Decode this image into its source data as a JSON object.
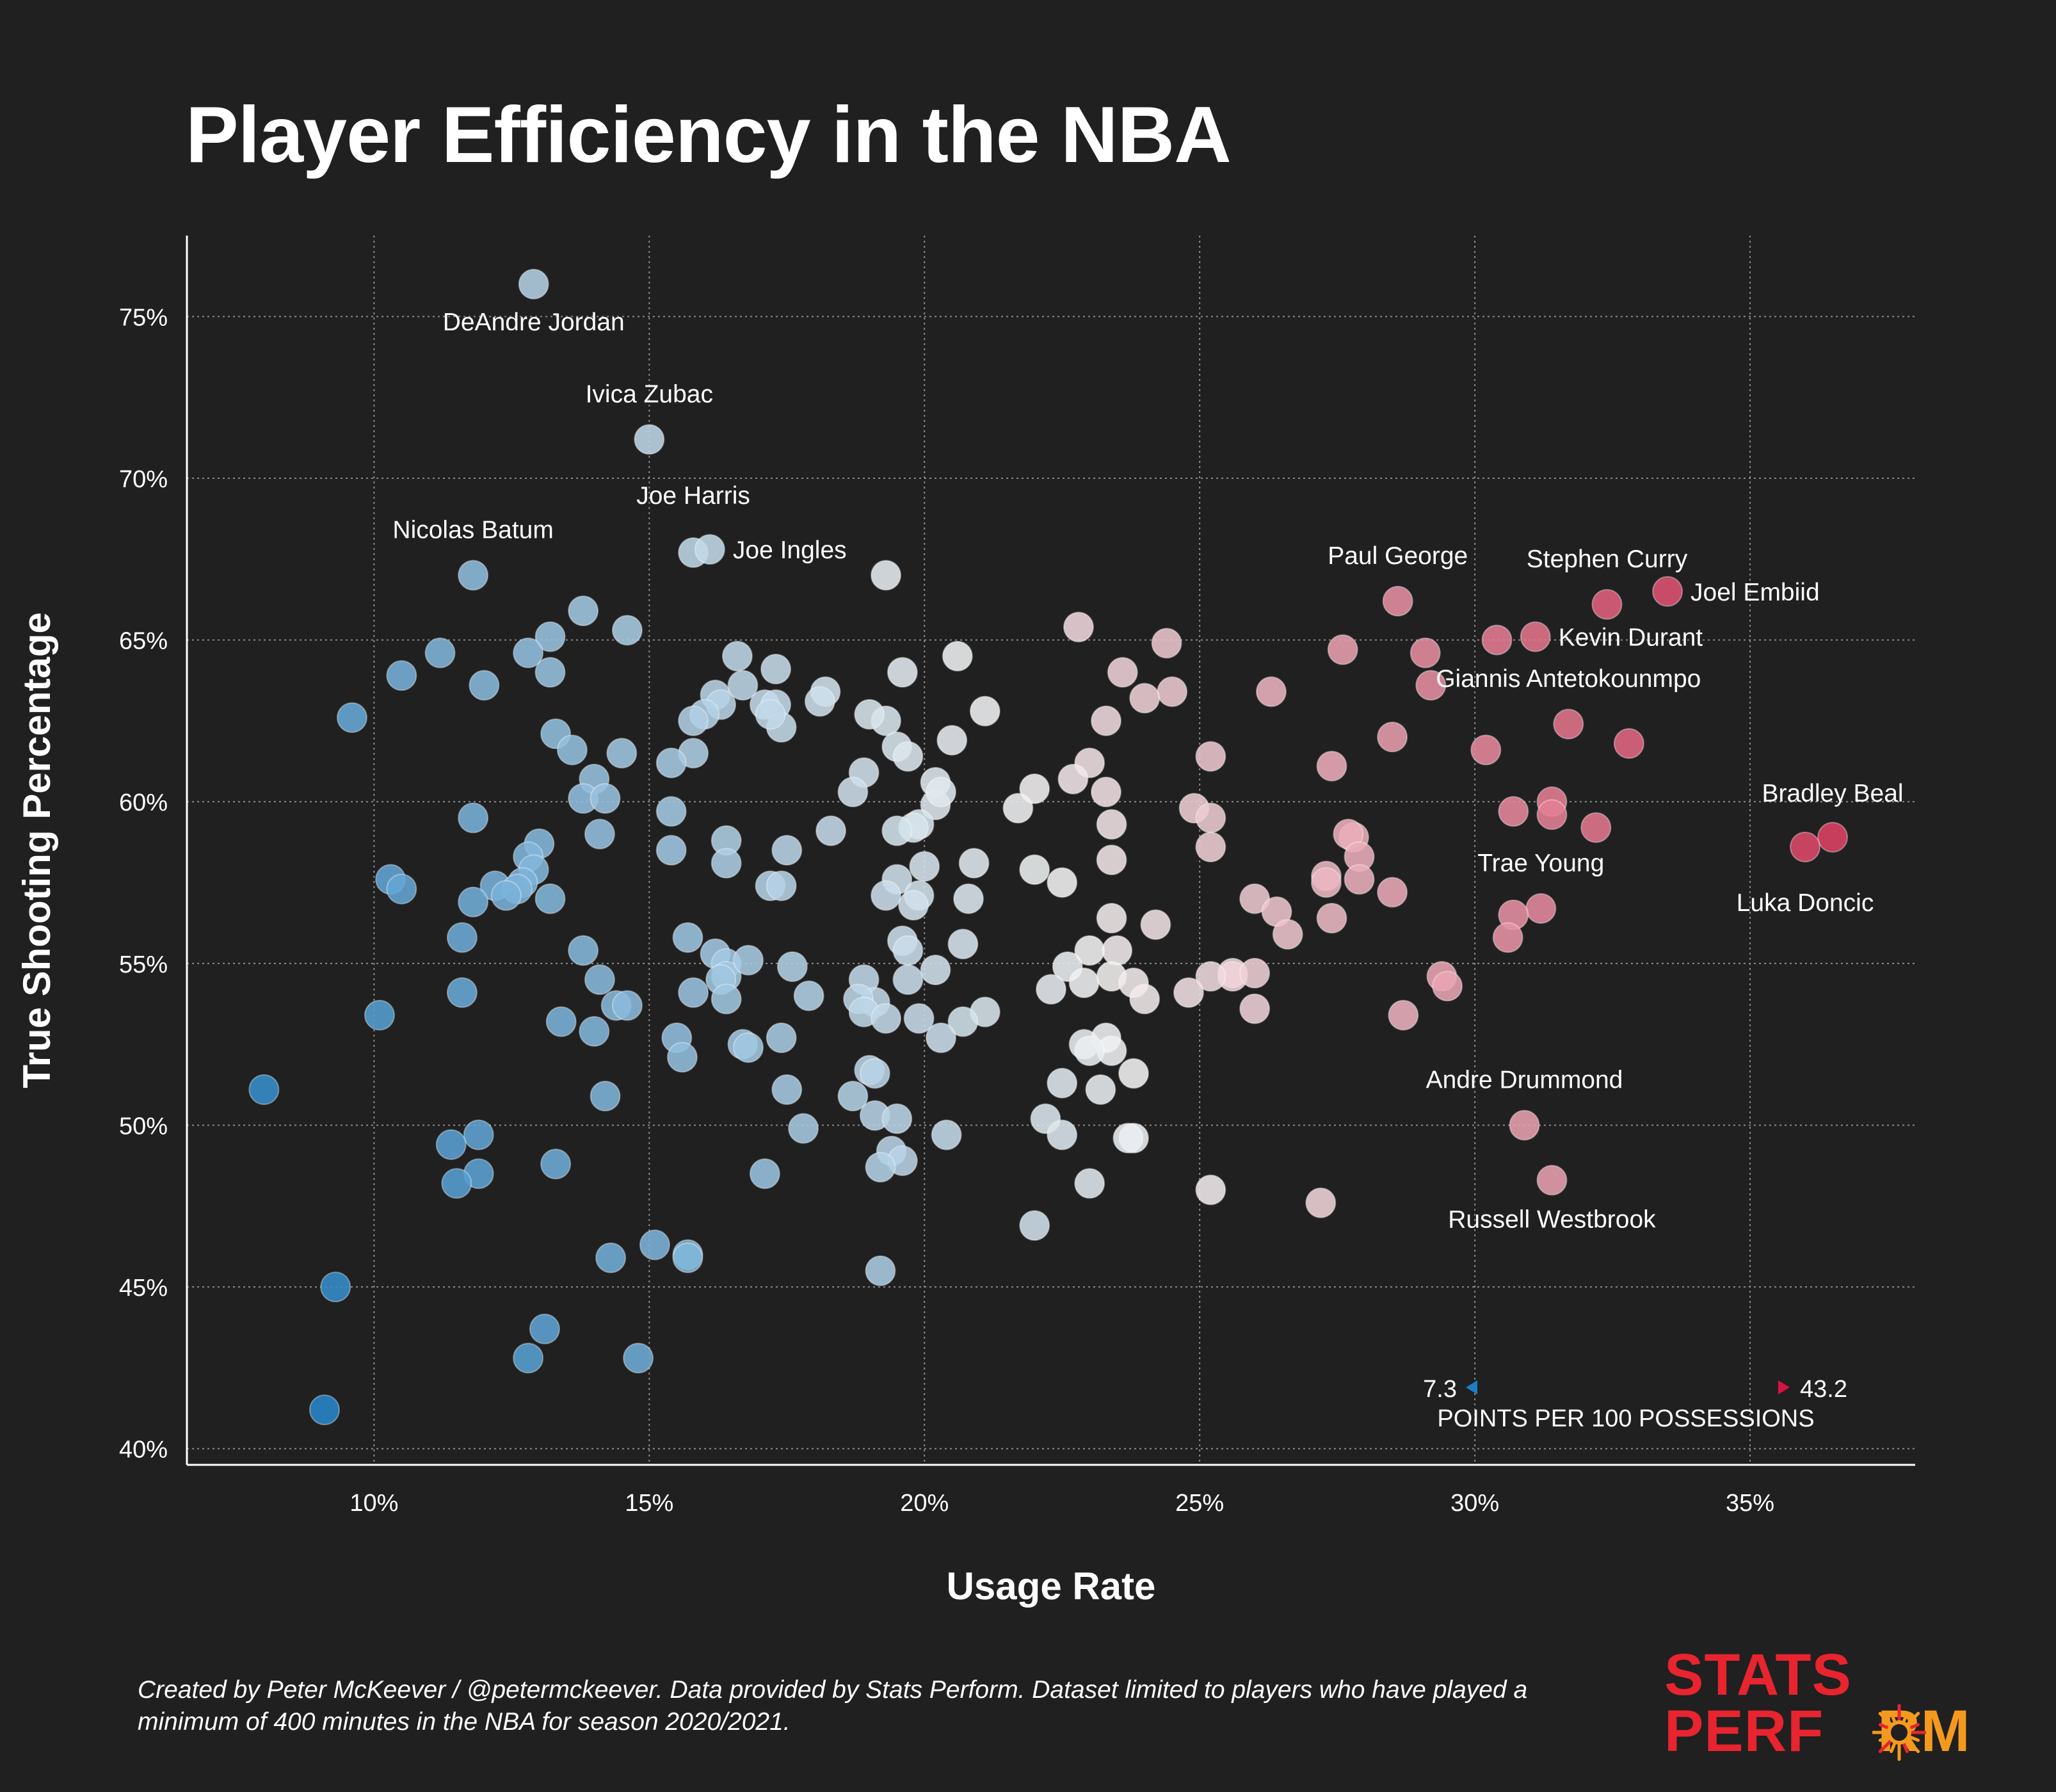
{
  "title": "Player Efficiency in the NBA",
  "caption": "Created by Peter McKeever / @petermckeever. Data provided by Stats Perform. Dataset limited to players who have played a minimum of 400 minutes in the NBA for season 2020/2021.",
  "logo": {
    "line1": "STATS",
    "line2a": "PERF",
    "line2b": "RM",
    "accent_colors": [
      "#e8242f",
      "#f39a1e"
    ]
  },
  "colors": {
    "background": "#202020",
    "low": "#1a7fc6",
    "mid": "#f2f2f2",
    "high": "#d8123e"
  },
  "chart_data": {
    "type": "scatter",
    "title": "Player Efficiency in the NBA",
    "xlabel": "Usage Rate",
    "ylabel": "True Shooting Percentage",
    "xlim": [
      6.6,
      38
    ],
    "ylim": [
      39.5,
      77.5
    ],
    "xticks": [
      10,
      15,
      20,
      25,
      30,
      35
    ],
    "yticks": [
      40,
      45,
      50,
      55,
      60,
      65,
      70,
      75
    ],
    "xtick_labels": [
      "10%",
      "15%",
      "20%",
      "25%",
      "30%",
      "35%"
    ],
    "ytick_labels": [
      "40%",
      "45%",
      "50%",
      "55%",
      "60%",
      "65%",
      "70%",
      "75%"
    ],
    "grid": true,
    "color_scale": {
      "label": "POINTS PER 100 POSSESSIONS",
      "min": 7.3,
      "max": 43.2,
      "min_label": "7.3",
      "max_label": "43.2"
    },
    "labeled_players": [
      {
        "name": "DeAndre Jordan",
        "x": 12.9,
        "y": 76.0
      },
      {
        "name": "Ivica Zubac",
        "x": 15.0,
        "y": 71.2
      },
      {
        "name": "Joe Harris",
        "x": 15.8,
        "y": 67.7
      },
      {
        "name": "Joe Ingles",
        "x": 16.1,
        "y": 67.8
      },
      {
        "name": "Nicolas Batum",
        "x": 11.8,
        "y": 67.0
      },
      {
        "name": "Paul George",
        "x": 28.6,
        "y": 66.2
      },
      {
        "name": "Stephen Curry",
        "x": 32.4,
        "y": 66.1
      },
      {
        "name": "Joel Embiid",
        "x": 33.5,
        "y": 66.5
      },
      {
        "name": "Kevin Durant",
        "x": 31.1,
        "y": 65.1
      },
      {
        "name": "Giannis Antetokounmpo",
        "x": 31.7,
        "y": 62.4
      },
      {
        "name": "Bradley Beal",
        "x": 36.5,
        "y": 58.9
      },
      {
        "name": "Luka Doncic",
        "x": 36.0,
        "y": 58.6
      },
      {
        "name": "Trae Young",
        "x": 31.2,
        "y": 56.7
      },
      {
        "name": "Andre Drummond",
        "x": 30.9,
        "y": 50.0
      },
      {
        "name": "Russell Westbrook",
        "x": 31.4,
        "y": 48.3
      }
    ],
    "points": [
      [
        12.9,
        76.0
      ],
      [
        15.0,
        71.2
      ],
      [
        15.8,
        67.7
      ],
      [
        16.1,
        67.8
      ],
      [
        11.8,
        67.0
      ],
      [
        19.3,
        67.0
      ],
      [
        28.6,
        66.2
      ],
      [
        32.4,
        66.1
      ],
      [
        33.5,
        66.5
      ],
      [
        31.1,
        65.1
      ],
      [
        30.4,
        65.0
      ],
      [
        31.7,
        62.4
      ],
      [
        32.8,
        61.8
      ],
      [
        30.2,
        61.6
      ],
      [
        36.5,
        58.9
      ],
      [
        36.0,
        58.6
      ],
      [
        31.2,
        56.7
      ],
      [
        30.7,
        56.5
      ],
      [
        30.6,
        55.8
      ],
      [
        30.9,
        50.0
      ],
      [
        31.4,
        48.3
      ],
      [
        31.4,
        60.0
      ],
      [
        31.4,
        59.6
      ],
      [
        30.7,
        59.7
      ],
      [
        32.2,
        59.2
      ],
      [
        29.1,
        64.6
      ],
      [
        29.2,
        63.6
      ],
      [
        28.5,
        62.0
      ],
      [
        27.6,
        64.7
      ],
      [
        27.4,
        61.1
      ],
      [
        28.5,
        57.2
      ],
      [
        27.8,
        58.9
      ],
      [
        27.7,
        59.0
      ],
      [
        27.9,
        58.3
      ],
      [
        27.9,
        57.6
      ],
      [
        27.3,
        57.7
      ],
      [
        27.3,
        57.5
      ],
      [
        27.4,
        56.4
      ],
      [
        29.4,
        54.6
      ],
      [
        29.5,
        54.3
      ],
      [
        28.7,
        53.4
      ],
      [
        27.2,
        47.6
      ],
      [
        26.3,
        63.4
      ],
      [
        25.2,
        61.4
      ],
      [
        24.9,
        59.8
      ],
      [
        25.2,
        59.5
      ],
      [
        25.2,
        58.6
      ],
      [
        26.0,
        57.0
      ],
      [
        26.4,
        56.6
      ],
      [
        26.6,
        55.9
      ],
      [
        25.6,
        54.7
      ],
      [
        25.6,
        54.6
      ],
      [
        26.0,
        54.7
      ],
      [
        25.2,
        54.6
      ],
      [
        26.0,
        53.6
      ],
      [
        24.8,
        54.1
      ],
      [
        25.2,
        48.0
      ],
      [
        22.8,
        65.4
      ],
      [
        24.4,
        64.9
      ],
      [
        24.5,
        63.4
      ],
      [
        24.0,
        63.2
      ],
      [
        23.6,
        64.0
      ],
      [
        23.3,
        62.5
      ],
      [
        23.0,
        61.2
      ],
      [
        22.7,
        60.7
      ],
      [
        23.3,
        60.3
      ],
      [
        23.4,
        59.3
      ],
      [
        23.4,
        58.2
      ],
      [
        22.0,
        60.4
      ],
      [
        21.7,
        59.8
      ],
      [
        22.0,
        57.9
      ],
      [
        22.5,
        57.5
      ],
      [
        23.4,
        56.4
      ],
      [
        24.2,
        56.2
      ],
      [
        23.5,
        55.4
      ],
      [
        23.0,
        55.4
      ],
      [
        22.6,
        54.9
      ],
      [
        22.9,
        54.4
      ],
      [
        23.4,
        54.6
      ],
      [
        23.8,
        54.4
      ],
      [
        24.0,
        53.9
      ],
      [
        22.3,
        54.2
      ],
      [
        23.3,
        52.7
      ],
      [
        23.4,
        52.3
      ],
      [
        22.9,
        52.5
      ],
      [
        23.0,
        52.3
      ],
      [
        22.5,
        51.3
      ],
      [
        23.2,
        51.1
      ],
      [
        23.8,
        51.6
      ],
      [
        22.2,
        50.2
      ],
      [
        22.5,
        49.7
      ],
      [
        23.8,
        49.6
      ],
      [
        23.7,
        49.6
      ],
      [
        23.0,
        48.2
      ],
      [
        22.0,
        46.9
      ],
      [
        20.6,
        64.5
      ],
      [
        21.1,
        62.8
      ],
      [
        20.5,
        61.9
      ],
      [
        20.2,
        60.6
      ],
      [
        20.2,
        59.9
      ],
      [
        20.3,
        60.3
      ],
      [
        20.9,
        58.1
      ],
      [
        20.0,
        58.0
      ],
      [
        20.8,
        57.0
      ],
      [
        20.7,
        55.6
      ],
      [
        20.2,
        54.8
      ],
      [
        21.1,
        53.5
      ],
      [
        20.7,
        53.2
      ],
      [
        20.3,
        52.7
      ],
      [
        20.4,
        49.7
      ],
      [
        19.6,
        64.0
      ],
      [
        19.3,
        62.5
      ],
      [
        19.0,
        62.7
      ],
      [
        19.5,
        61.7
      ],
      [
        19.7,
        61.4
      ],
      [
        18.9,
        60.9
      ],
      [
        18.7,
        60.3
      ],
      [
        19.9,
        59.3
      ],
      [
        19.8,
        59.2
      ],
      [
        19.5,
        59.1
      ],
      [
        19.5,
        57.6
      ],
      [
        19.3,
        57.1
      ],
      [
        19.9,
        57.1
      ],
      [
        19.8,
        56.8
      ],
      [
        19.6,
        55.7
      ],
      [
        19.7,
        55.4
      ],
      [
        19.7,
        54.5
      ],
      [
        18.9,
        54.5
      ],
      [
        19.1,
        53.8
      ],
      [
        18.8,
        53.9
      ],
      [
        18.9,
        53.5
      ],
      [
        19.3,
        53.3
      ],
      [
        19.9,
        53.3
      ],
      [
        19.0,
        51.7
      ],
      [
        19.1,
        51.6
      ],
      [
        18.7,
        50.9
      ],
      [
        19.1,
        50.3
      ],
      [
        19.5,
        50.2
      ],
      [
        19.4,
        49.2
      ],
      [
        19.6,
        48.9
      ],
      [
        19.2,
        48.7
      ],
      [
        19.2,
        45.5
      ],
      [
        18.2,
        63.4
      ],
      [
        18.1,
        63.1
      ],
      [
        17.3,
        64.1
      ],
      [
        16.6,
        64.5
      ],
      [
        16.2,
        63.3
      ],
      [
        16.3,
        63.0
      ],
      [
        16.7,
        63.6
      ],
      [
        17.1,
        63.0
      ],
      [
        17.3,
        63.0
      ],
      [
        17.4,
        62.3
      ],
      [
        16.0,
        62.7
      ],
      [
        15.8,
        62.5
      ],
      [
        17.2,
        62.7
      ],
      [
        15.8,
        61.5
      ],
      [
        15.4,
        61.2
      ],
      [
        15.4,
        59.7
      ],
      [
        18.3,
        59.1
      ],
      [
        16.4,
        58.8
      ],
      [
        16.4,
        58.1
      ],
      [
        17.5,
        58.5
      ],
      [
        15.4,
        58.5
      ],
      [
        17.2,
        57.4
      ],
      [
        17.4,
        57.4
      ],
      [
        15.7,
        55.8
      ],
      [
        16.2,
        55.3
      ],
      [
        16.4,
        55.0
      ],
      [
        16.4,
        54.6
      ],
      [
        16.3,
        54.5
      ],
      [
        16.8,
        55.1
      ],
      [
        17.6,
        54.9
      ],
      [
        15.8,
        54.1
      ],
      [
        16.4,
        53.9
      ],
      [
        17.9,
        54.0
      ],
      [
        15.5,
        52.7
      ],
      [
        15.6,
        52.1
      ],
      [
        16.7,
        52.5
      ],
      [
        16.8,
        52.4
      ],
      [
        17.4,
        52.7
      ],
      [
        17.5,
        51.1
      ],
      [
        17.8,
        49.9
      ],
      [
        17.1,
        48.5
      ],
      [
        15.1,
        46.3
      ],
      [
        15.7,
        46.0
      ],
      [
        15.7,
        45.9
      ],
      [
        14.3,
        45.9
      ],
      [
        14.8,
        42.8
      ],
      [
        14.6,
        65.3
      ],
      [
        13.8,
        65.9
      ],
      [
        13.2,
        65.1
      ],
      [
        12.8,
        64.6
      ],
      [
        13.2,
        64.0
      ],
      [
        13.3,
        62.1
      ],
      [
        13.6,
        61.6
      ],
      [
        14.5,
        61.5
      ],
      [
        14.0,
        60.7
      ],
      [
        13.8,
        60.1
      ],
      [
        14.2,
        60.1
      ],
      [
        14.1,
        59.0
      ],
      [
        13.0,
        58.7
      ],
      [
        12.8,
        58.3
      ],
      [
        12.9,
        57.9
      ],
      [
        12.7,
        57.5
      ],
      [
        13.2,
        57.0
      ],
      [
        12.2,
        57.4
      ],
      [
        12.6,
        57.3
      ],
      [
        12.4,
        57.1
      ],
      [
        13.8,
        55.4
      ],
      [
        14.1,
        54.5
      ],
      [
        14.4,
        53.7
      ],
      [
        14.6,
        53.7
      ],
      [
        13.4,
        53.2
      ],
      [
        14.0,
        52.9
      ],
      [
        14.2,
        50.9
      ],
      [
        13.3,
        48.8
      ],
      [
        13.1,
        43.7
      ],
      [
        12.8,
        42.8
      ],
      [
        11.2,
        64.6
      ],
      [
        10.5,
        63.9
      ],
      [
        12.0,
        63.6
      ],
      [
        9.6,
        62.6
      ],
      [
        11.8,
        59.5
      ],
      [
        10.3,
        57.6
      ],
      [
        10.5,
        57.3
      ],
      [
        11.8,
        56.9
      ],
      [
        11.6,
        55.8
      ],
      [
        11.6,
        54.1
      ],
      [
        10.1,
        53.4
      ],
      [
        11.9,
        49.7
      ],
      [
        11.4,
        49.4
      ],
      [
        11.9,
        48.5
      ],
      [
        11.5,
        48.2
      ],
      [
        8.0,
        51.1
      ],
      [
        9.3,
        45.0
      ],
      [
        9.1,
        41.2
      ]
    ]
  }
}
